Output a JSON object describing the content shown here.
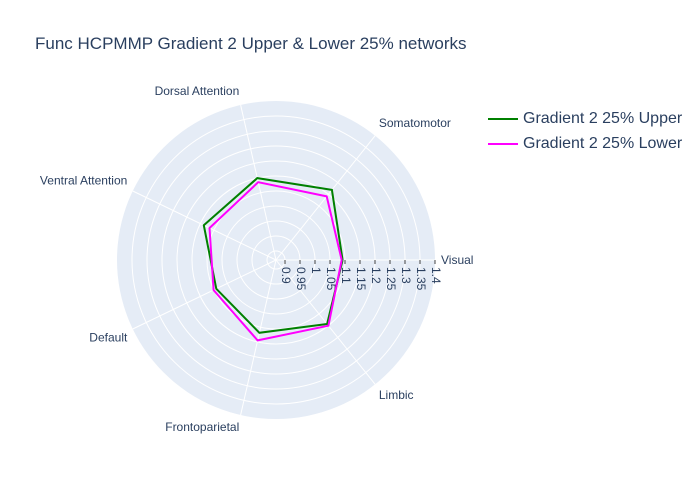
{
  "title": "Func HCPMMP Gradient 2 Upper & Lower 25% networks",
  "chart_data": {
    "type": "radar",
    "title": "Func HCPMMP Gradient 2 Upper & Lower 25% networks",
    "categories": [
      "Visual",
      "Somatomotor",
      "Dorsal Attention",
      "Ventral Attention",
      "Default",
      "Frontoparietal",
      "Limbic"
    ],
    "radial_range": [
      0.87,
      1.4
    ],
    "radial_ticks": [
      "0.9",
      "0.95",
      "1",
      "1.05",
      "1.1",
      "1.15",
      "1.2",
      "1.25",
      "1.3",
      "1.35",
      "1.4"
    ],
    "series": [
      {
        "name": "Gradient 2 25% Upper",
        "color": "#008000",
        "values": [
          1.092,
          1.169,
          1.15,
          1.137,
          1.091,
          1.119,
          1.143
        ]
      },
      {
        "name": "Gradient 2 25% Lower",
        "color": "#ff00ff",
        "values": [
          1.089,
          1.141,
          1.136,
          1.116,
          1.101,
          1.145,
          1.15
        ]
      }
    ],
    "legend_position": "top-right"
  }
}
